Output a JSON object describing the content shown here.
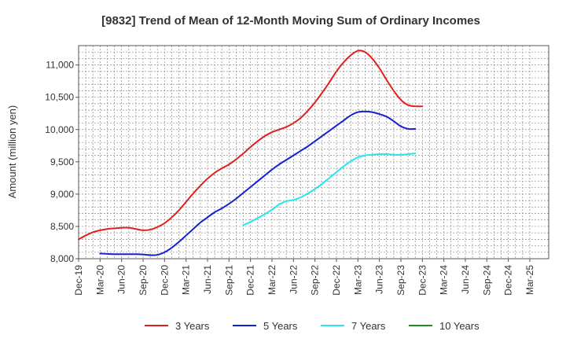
{
  "chart_data": {
    "type": "line",
    "title": "[9832]  Trend of Mean of 12-Month Moving Sum of Ordinary Incomes",
    "ylabel": "Amount (million yen)",
    "xlabel": "",
    "ylim": [
      8000,
      11300
    ],
    "y_ticks": [
      8000,
      8500,
      9000,
      9500,
      10000,
      10500,
      11000
    ],
    "y_tick_labels": [
      "8,000",
      "8,500",
      "9,000",
      "9,500",
      "10,000",
      "10,500",
      "11,000"
    ],
    "x_tick_labels": [
      "Dec-19",
      "Mar-20",
      "Jun-20",
      "Sep-20",
      "Dec-20",
      "Mar-21",
      "Jun-21",
      "Sep-21",
      "Dec-21",
      "Mar-22",
      "Jun-22",
      "Sep-22",
      "Dec-22",
      "Mar-23",
      "Jun-23",
      "Sep-23",
      "Dec-23",
      "Mar-24",
      "Jun-24",
      "Sep-24",
      "Dec-24",
      "Mar-25"
    ],
    "grid": true,
    "legend_position": "bottom",
    "series": [
      {
        "name": "3 Years",
        "color": "#e02020",
        "values": [
          8300,
          8360,
          8410,
          8440,
          8460,
          8470,
          8480,
          8480,
          8460,
          8440,
          8450,
          8490,
          8550,
          8640,
          8750,
          8880,
          9010,
          9130,
          9240,
          9330,
          9400,
          9460,
          9540,
          9630,
          9730,
          9820,
          9900,
          9960,
          10000,
          10040,
          10100,
          10180,
          10290,
          10420,
          10570,
          10730,
          10900,
          11040,
          11150,
          11220,
          11200,
          11100,
          10950,
          10770,
          10600,
          10460,
          10380,
          10360,
          10360
        ]
      },
      {
        "name": "5 Years",
        "color": "#1420d2",
        "values": [
          null,
          null,
          null,
          8080,
          8075,
          8070,
          8070,
          8070,
          8070,
          8065,
          8055,
          8060,
          8100,
          8170,
          8260,
          8360,
          8460,
          8560,
          8640,
          8720,
          8780,
          8850,
          8930,
          9020,
          9110,
          9200,
          9290,
          9380,
          9460,
          9530,
          9600,
          9670,
          9740,
          9820,
          9900,
          9980,
          10060,
          10140,
          10220,
          10270,
          10280,
          10270,
          10240,
          10200,
          10130,
          10050,
          10010,
          10010
        ]
      },
      {
        "name": "7 Years",
        "color": "#28e6ea",
        "values": [
          null,
          null,
          null,
          null,
          null,
          null,
          null,
          null,
          null,
          null,
          null,
          null,
          null,
          null,
          null,
          null,
          null,
          null,
          null,
          null,
          null,
          null,
          null,
          8520,
          8570,
          8630,
          8690,
          8760,
          8840,
          8890,
          8910,
          8950,
          9010,
          9080,
          9160,
          9250,
          9340,
          9430,
          9510,
          9570,
          9600,
          9610,
          9620,
          9620,
          9610,
          9610,
          9620,
          9630
        ]
      },
      {
        "name": "10 Years",
        "color": "#1e8c1e",
        "values": []
      }
    ]
  }
}
